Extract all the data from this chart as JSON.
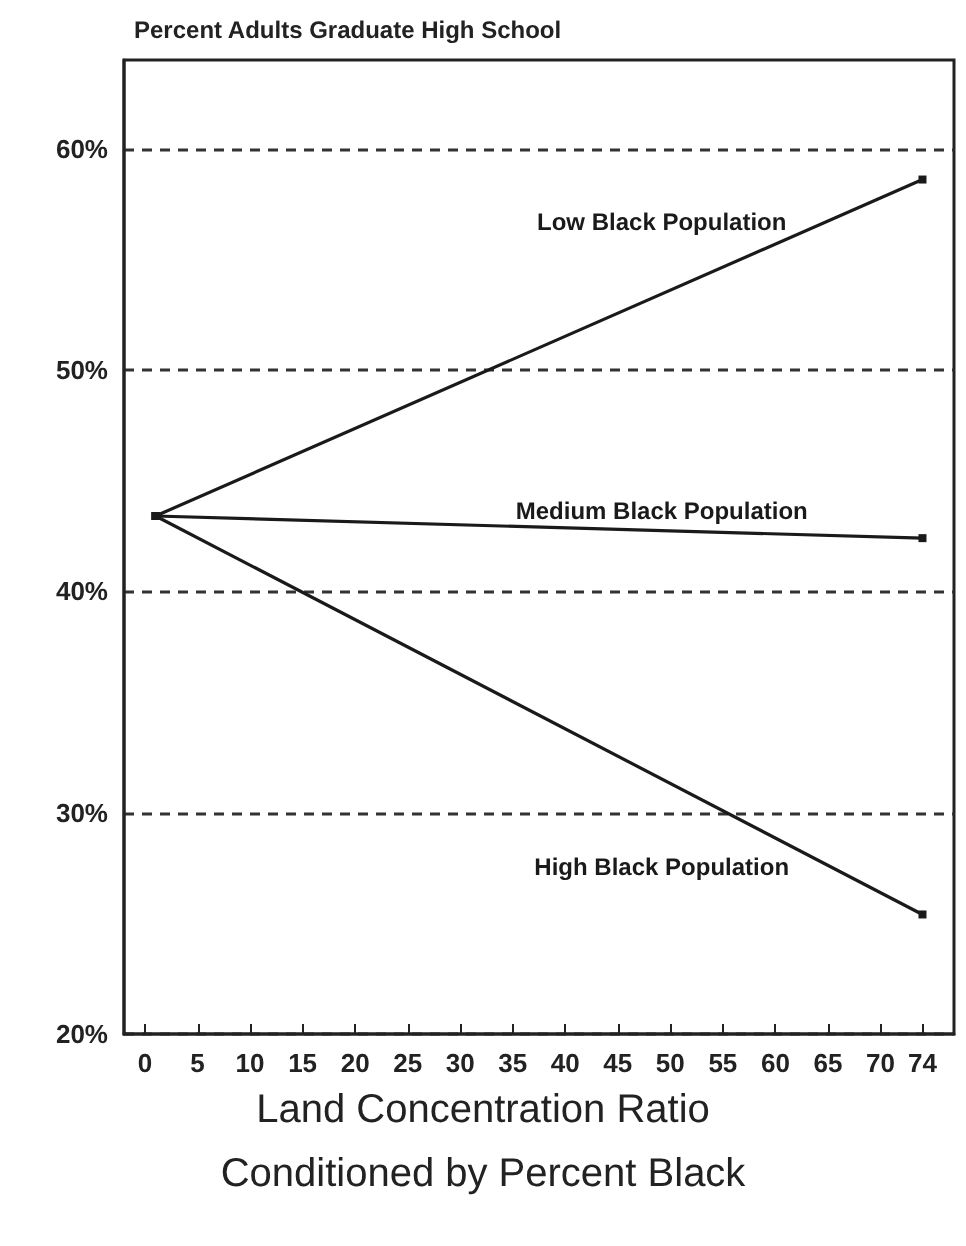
{
  "chart_data": {
    "type": "line",
    "title": "Percent Adults Graduate High School",
    "xlabel": "Land Concentration Ratio\nConditioned by Percent Black",
    "x": [
      1,
      74
    ],
    "series": [
      {
        "name": "Low Black Population",
        "color": "#1a1a1a",
        "values": [
          43.4,
          58.6
        ]
      },
      {
        "name": "Medium Black Population",
        "color": "#1a1a1a",
        "values": [
          43.4,
          42.4
        ]
      },
      {
        "name": "High Black Population",
        "color": "#1a1a1a",
        "values": [
          43.4,
          25.4
        ]
      }
    ],
    "xlim": [
      -2,
      77
    ],
    "xticks": [
      0,
      5,
      10,
      15,
      20,
      25,
      30,
      35,
      40,
      45,
      50,
      55,
      60,
      65,
      70,
      74
    ],
    "ylim": [
      20,
      64
    ],
    "yticks": [
      {
        "value": 20,
        "label": "20%"
      },
      {
        "value": 30,
        "label": "30%"
      },
      {
        "value": 40,
        "label": "40%"
      },
      {
        "value": 50,
        "label": "50%"
      },
      {
        "value": 60,
        "label": "60%"
      }
    ],
    "grid": "y",
    "marker": "square",
    "line_style": "solid",
    "legend": false
  }
}
